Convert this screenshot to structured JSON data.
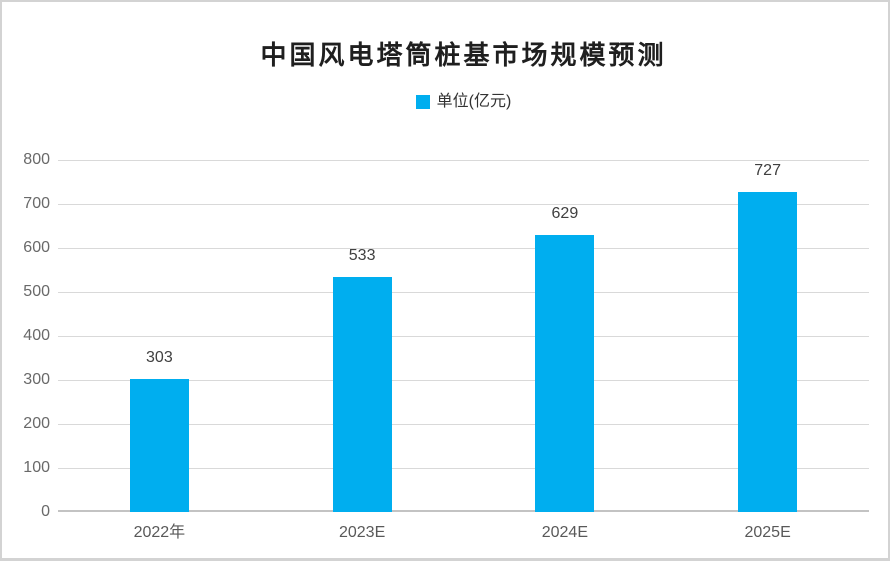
{
  "page": {
    "background": "#ffffff",
    "border_color": "#d3d3d3"
  },
  "chart_data": {
    "type": "bar",
    "title": "中国风电塔筒桩基市场规模预测",
    "legend": {
      "label": "单位(亿元)",
      "position": "top-center",
      "swatch_color": "#00AEEF"
    },
    "categories": [
      "2022年",
      "2023E",
      "2024E",
      "2025E"
    ],
    "values": [
      303,
      533,
      629,
      727
    ],
    "xlabel": "",
    "ylabel": "",
    "ylim": [
      0,
      800
    ],
    "yticks": [
      0,
      100,
      200,
      300,
      400,
      500,
      600,
      700,
      800
    ],
    "grid": true,
    "colors": {
      "bar": "#00AEEF",
      "gridline": "#d9d9d9",
      "axis_line": "#c3c3c3",
      "y_tick_text": "#696969",
      "x_tick_text": "#595959",
      "value_label_text": "#404040",
      "title_text": "#1f1f1f"
    }
  }
}
